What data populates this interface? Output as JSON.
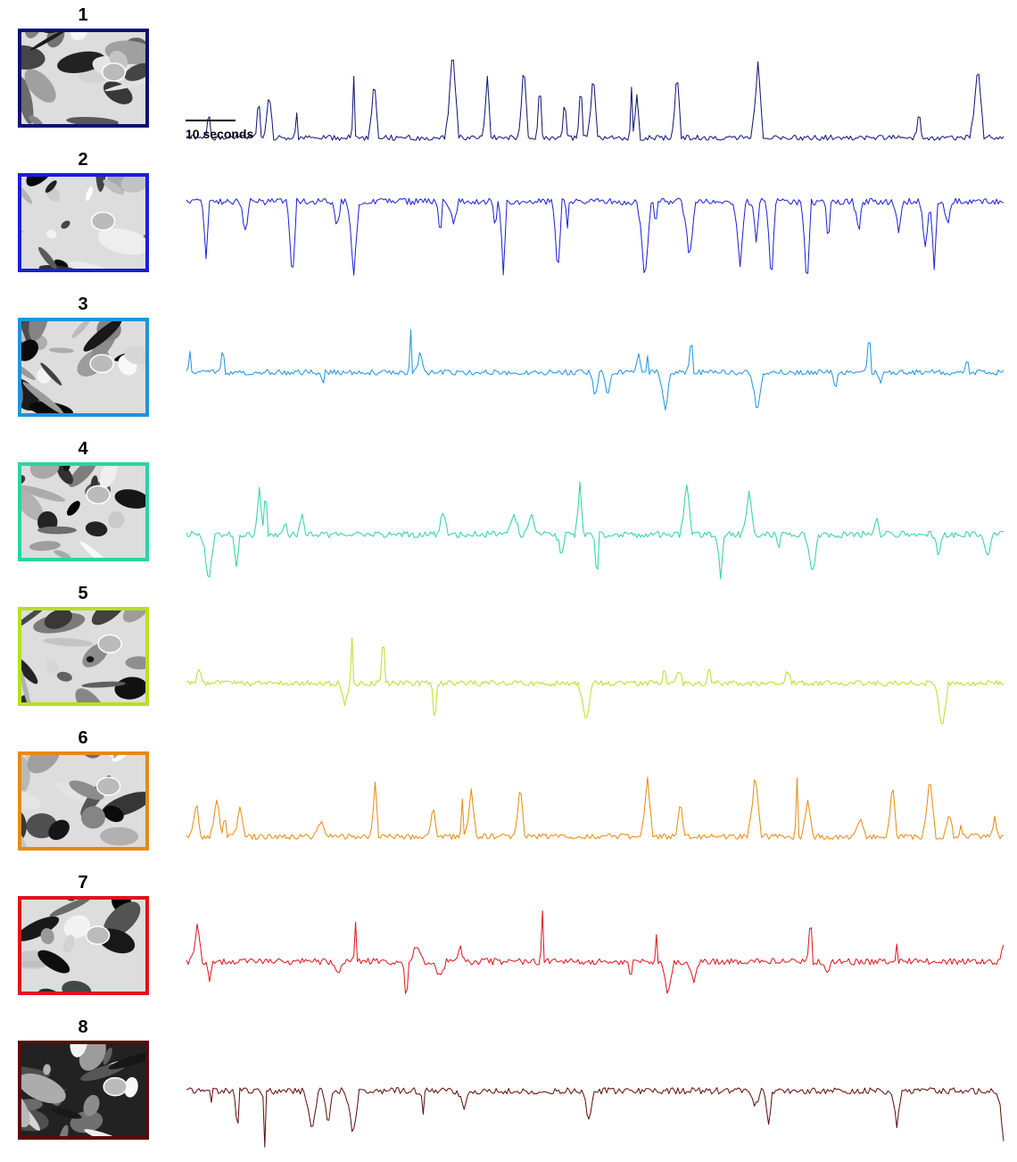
{
  "scale_bar": {
    "label": "10 seconds"
  },
  "panels": [
    {
      "id": "1",
      "color": "#0c1173",
      "baseline": 0.92,
      "direction": "up",
      "amp": 0.85,
      "noise": 0.05,
      "seed": 11
    },
    {
      "id": "2",
      "color": "#1a1fd6",
      "baseline": 0.18,
      "direction": "down",
      "amp": 0.85,
      "noise": 0.06,
      "seed": 23
    },
    {
      "id": "3",
      "color": "#1a95dd",
      "baseline": 0.42,
      "direction": "both",
      "amp": 0.45,
      "noise": 0.05,
      "seed": 37
    },
    {
      "id": "4",
      "color": "#2ad3a3",
      "baseline": 0.58,
      "direction": "both",
      "amp": 0.5,
      "noise": 0.06,
      "seed": 41
    },
    {
      "id": "5",
      "color": "#b6e022",
      "baseline": 0.62,
      "direction": "both",
      "amp": 0.5,
      "noise": 0.05,
      "seed": 53
    },
    {
      "id": "6",
      "color": "#e8890f",
      "baseline": 0.7,
      "direction": "up",
      "amp": 0.6,
      "noise": 0.05,
      "seed": 67
    },
    {
      "id": "7",
      "color": "#e0121c",
      "baseline": 0.52,
      "direction": "both",
      "amp": 0.45,
      "noise": 0.06,
      "seed": 79
    },
    {
      "id": "8",
      "color": "#5c0a08",
      "baseline": 0.38,
      "direction": "down",
      "amp": 0.55,
      "noise": 0.06,
      "seed": 97
    }
  ]
}
